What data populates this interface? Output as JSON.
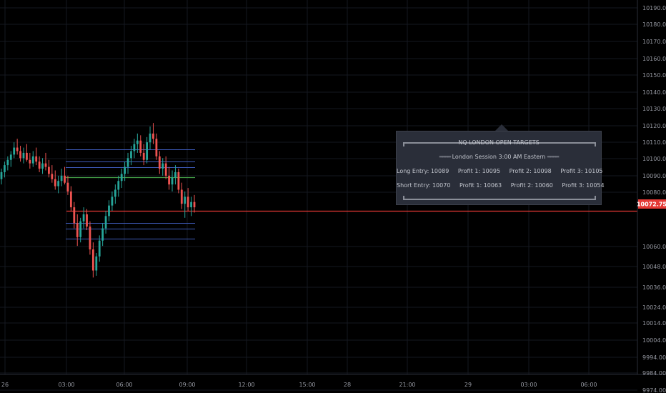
{
  "colors": {
    "background": "#000000",
    "grid": "#151820",
    "bull": "#26a69a",
    "bear": "#ef5350",
    "axis_text": "#9598a1",
    "price_tag": "#e53935",
    "entry_line": "#e53935",
    "long_entry_line": "#43a047",
    "target_line": "#3d5ab8"
  },
  "chart_data": {
    "type": "candlestick",
    "y_axis_ticks": [
      "10190.00",
      "10180.00",
      "10170.00",
      "10160.00",
      "10150.00",
      "10140.00",
      "10130.00",
      "10120.00",
      "10110.00",
      "10100.00",
      "10090.00",
      "10080.00",
      "10060.00",
      "10048.00",
      "10036.00",
      "10024.00",
      "10014.00",
      "10004.00",
      "9994.00",
      "9984.00",
      "9974.00"
    ],
    "x_axis_ticks": [
      "26",
      "03:00",
      "06:00",
      "09:00",
      "12:00",
      "15:00",
      "28",
      "21:00",
      "29",
      "03:00",
      "06:00"
    ],
    "current_price": "10072.75",
    "price_levels": [
      {
        "name": "profit-3-long",
        "value": 10105,
        "color": "#3d5ab8"
      },
      {
        "name": "profit-2-long",
        "value": 10098,
        "color": "#3d5ab8"
      },
      {
        "name": "profit-1-long",
        "value": 10095,
        "color": "#3d5ab8"
      },
      {
        "name": "long-entry",
        "value": 10089,
        "color": "#43a047"
      },
      {
        "name": "short-entry",
        "value": 10070,
        "color": "#e53935"
      },
      {
        "name": "profit-1-short",
        "value": 10063,
        "color": "#3d5ab8"
      },
      {
        "name": "profit-2-short",
        "value": 10060,
        "color": "#3d5ab8"
      },
      {
        "name": "profit-3-short",
        "value": 10054,
        "color": "#3d5ab8"
      }
    ],
    "candles_ohlc": [
      [
        10088,
        10094,
        10085,
        10092
      ],
      [
        10092,
        10098,
        10089,
        10096
      ],
      [
        10096,
        10101,
        10093,
        10099
      ],
      [
        10099,
        10104,
        10095,
        10102
      ],
      [
        10102,
        10109,
        10100,
        10106
      ],
      [
        10106,
        10111,
        10102,
        10104
      ],
      [
        10104,
        10107,
        10098,
        10100
      ],
      [
        10100,
        10106,
        10097,
        10103
      ],
      [
        10103,
        10108,
        10098,
        10099
      ],
      [
        10099,
        10103,
        10094,
        10097
      ],
      [
        10097,
        10104,
        10095,
        10101
      ],
      [
        10101,
        10106,
        10096,
        10098
      ],
      [
        10098,
        10101,
        10092,
        10094
      ],
      [
        10094,
        10100,
        10091,
        10097
      ],
      [
        10097,
        10103,
        10093,
        10095
      ],
      [
        10095,
        10099,
        10089,
        10091
      ],
      [
        10091,
        10096,
        10086,
        10088
      ],
      [
        10088,
        10093,
        10082,
        10084
      ],
      [
        10084,
        10090,
        10080,
        10087
      ],
      [
        10087,
        10094,
        10084,
        10090
      ],
      [
        10090,
        10095,
        10085,
        10086
      ],
      [
        10086,
        10090,
        10079,
        10081
      ],
      [
        10081,
        10084,
        10070,
        10072
      ],
      [
        10072,
        10075,
        10060,
        10063
      ],
      [
        10063,
        10068,
        10050,
        10055
      ],
      [
        10055,
        10066,
        10052,
        10064
      ],
      [
        10064,
        10072,
        10060,
        10068
      ],
      [
        10068,
        10071,
        10059,
        10061
      ],
      [
        10061,
        10064,
        10045,
        10048
      ],
      [
        10048,
        10052,
        10032,
        10036
      ],
      [
        10036,
        10046,
        10033,
        10044
      ],
      [
        10044,
        10056,
        10041,
        10053
      ],
      [
        10053,
        10063,
        10050,
        10060
      ],
      [
        10060,
        10070,
        10057,
        10067
      ],
      [
        10067,
        10076,
        10064,
        10073
      ],
      [
        10073,
        10081,
        10070,
        10078
      ],
      [
        10078,
        10085,
        10074,
        10082
      ],
      [
        10082,
        10090,
        10078,
        10087
      ],
      [
        10087,
        10094,
        10083,
        10091
      ],
      [
        10091,
        10098,
        10087,
        10095
      ],
      [
        10095,
        10103,
        10091,
        10100
      ],
      [
        10100,
        10107,
        10096,
        10104
      ],
      [
        10104,
        10111,
        10100,
        10108
      ],
      [
        10108,
        10114,
        10103,
        10110
      ],
      [
        10110,
        10113,
        10101,
        10103
      ],
      [
        10103,
        10108,
        10096,
        10099
      ],
      [
        10099,
        10112,
        10097,
        10109
      ],
      [
        10109,
        10118,
        10105,
        10114
      ],
      [
        10114,
        10120,
        10108,
        10111
      ],
      [
        10111,
        10114,
        10099,
        10101
      ],
      [
        10101,
        10104,
        10091,
        10094
      ],
      [
        10094,
        10100,
        10090,
        10097
      ],
      [
        10097,
        10101,
        10088,
        10090
      ],
      [
        10090,
        10095,
        10082,
        10085
      ],
      [
        10085,
        10093,
        10081,
        10089
      ],
      [
        10089,
        10096,
        10085,
        10092
      ],
      [
        10092,
        10094,
        10080,
        10082
      ],
      [
        10082,
        10086,
        10071,
        10074
      ],
      [
        10074,
        10081,
        10066,
        10078
      ],
      [
        10078,
        10083,
        10070,
        10072
      ],
      [
        10072,
        10078,
        10067,
        10075
      ],
      [
        10075,
        10079,
        10069,
        10072
      ]
    ]
  },
  "panel": {
    "title": "NQ LONDON OPEN TARGETS",
    "session": "London Session 3:00 AM Eastern",
    "long_entry": "Long Entry: 10089",
    "long_p1": "Profit 1: 10095",
    "long_p2": "Profit 2: 10098",
    "long_p3": "Profit 3: 10105",
    "short_entry": "Short Entry: 10070",
    "short_p1": "Profit 1: 10063",
    "short_p2": "Profit 2: 10060",
    "short_p3": "Profit 3: 10054"
  }
}
